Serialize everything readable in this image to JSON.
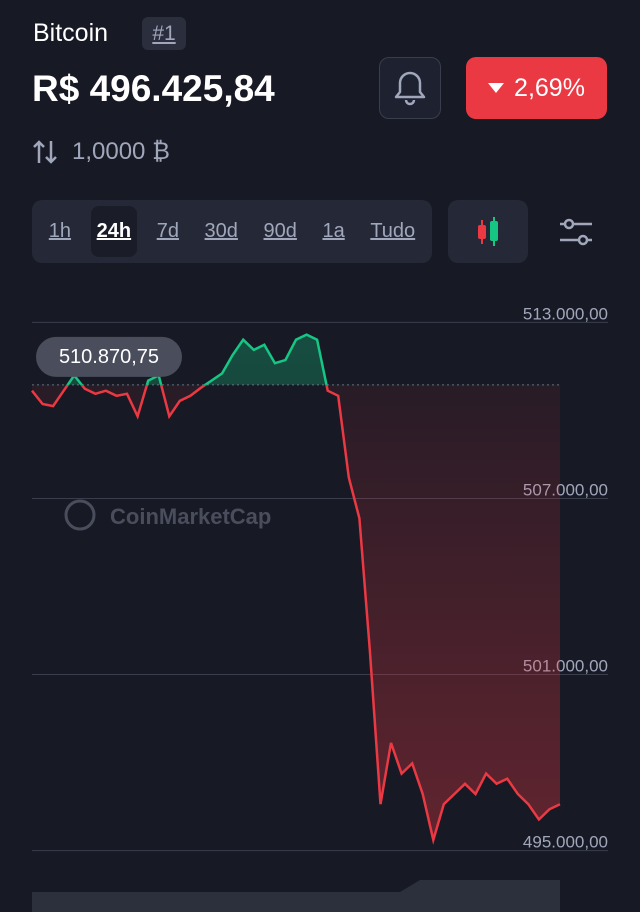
{
  "header": {
    "name": "Bitcoin",
    "rank": "#1",
    "price": "R$ 496.425,84",
    "change": "2,69%",
    "amount": "1,0000 ₿",
    "tabs": [
      "1h",
      "24h",
      "7d",
      "30d",
      "90d",
      "1a",
      "Tudo"
    ]
  },
  "chart_data": {
    "type": "line",
    "watermark": "CoinMarketCap",
    "ylim": [
      494000,
      514000
    ],
    "yticks": [
      {
        "value": 495000,
        "label": "495.000,00"
      },
      {
        "value": 501000,
        "label": "501.000,00"
      },
      {
        "value": 507000,
        "label": "507.000,00"
      },
      {
        "value": 513000,
        "label": "513.000,00"
      }
    ],
    "reference": {
      "value": 510870.75,
      "label": "510.870,75"
    },
    "up_color": "#16c784",
    "down_color": "#ea3943",
    "grid": true,
    "values": [
      510670,
      510217,
      510148,
      510670,
      511191,
      510739,
      510565,
      510670,
      510496,
      510565,
      509800,
      511017,
      511191,
      509800,
      510322,
      510496,
      510774,
      511017,
      511261,
      511887,
      512409,
      512061,
      512235,
      511609,
      511713,
      512409,
      512583,
      512409,
      510670,
      510496,
      507713,
      506322,
      501800,
      496583,
      498670,
      497626,
      497974,
      496930,
      495365,
      496583,
      496930,
      497278,
      496930,
      497626,
      497278,
      497452,
      496930,
      496583,
      496061,
      496409,
      496583
    ]
  }
}
